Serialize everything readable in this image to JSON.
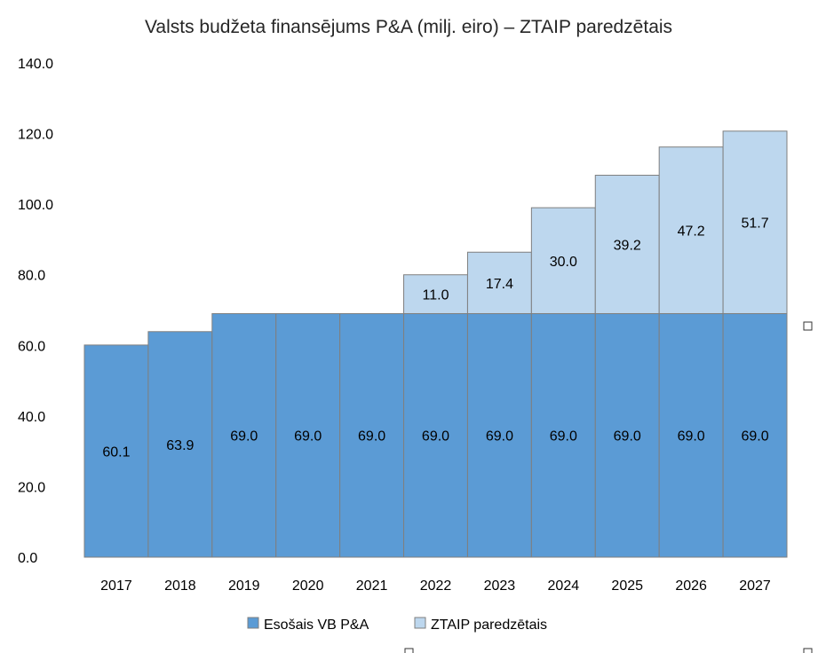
{
  "chart_data": {
    "type": "bar",
    "stacked": true,
    "title": "Valsts budžeta finansējums P&A (milj. eiro) – ZTAIP paredzētais",
    "xlabel": "",
    "ylabel": "",
    "categories": [
      "2017",
      "2018",
      "2019",
      "2020",
      "2021",
      "2022",
      "2023",
      "2024",
      "2025",
      "2026",
      "2027"
    ],
    "series": [
      {
        "name": "Esošais VB P&A",
        "color": "#5b9bd5",
        "values": [
          60.1,
          63.9,
          69.0,
          69.0,
          69.0,
          69.0,
          69.0,
          69.0,
          69.0,
          69.0,
          69.0
        ],
        "labels": [
          "60.1",
          "63.9",
          "69.0",
          "69.0",
          "69.0",
          "69.0",
          "69.0",
          "69.0",
          "69.0",
          "69.0",
          "69.0"
        ]
      },
      {
        "name": "ZTAIP paredzētais",
        "color": "#bdd7ee",
        "values": [
          0,
          0,
          0,
          0,
          0,
          11.0,
          17.4,
          30.0,
          39.2,
          47.2,
          51.7
        ],
        "labels": [
          "",
          "",
          "",
          "",
          "",
          "11.0",
          "17.4",
          "30.0",
          "39.2",
          "47.2",
          "51.7"
        ]
      }
    ],
    "ylim": [
      0,
      140
    ],
    "yticks": [
      "0.0",
      "20.0",
      "40.0",
      "60.0",
      "80.0",
      "100.0",
      "120.0",
      "140.0"
    ],
    "grid": false,
    "legend": "bottom",
    "bar_outline_color": "#7f7f7f"
  }
}
